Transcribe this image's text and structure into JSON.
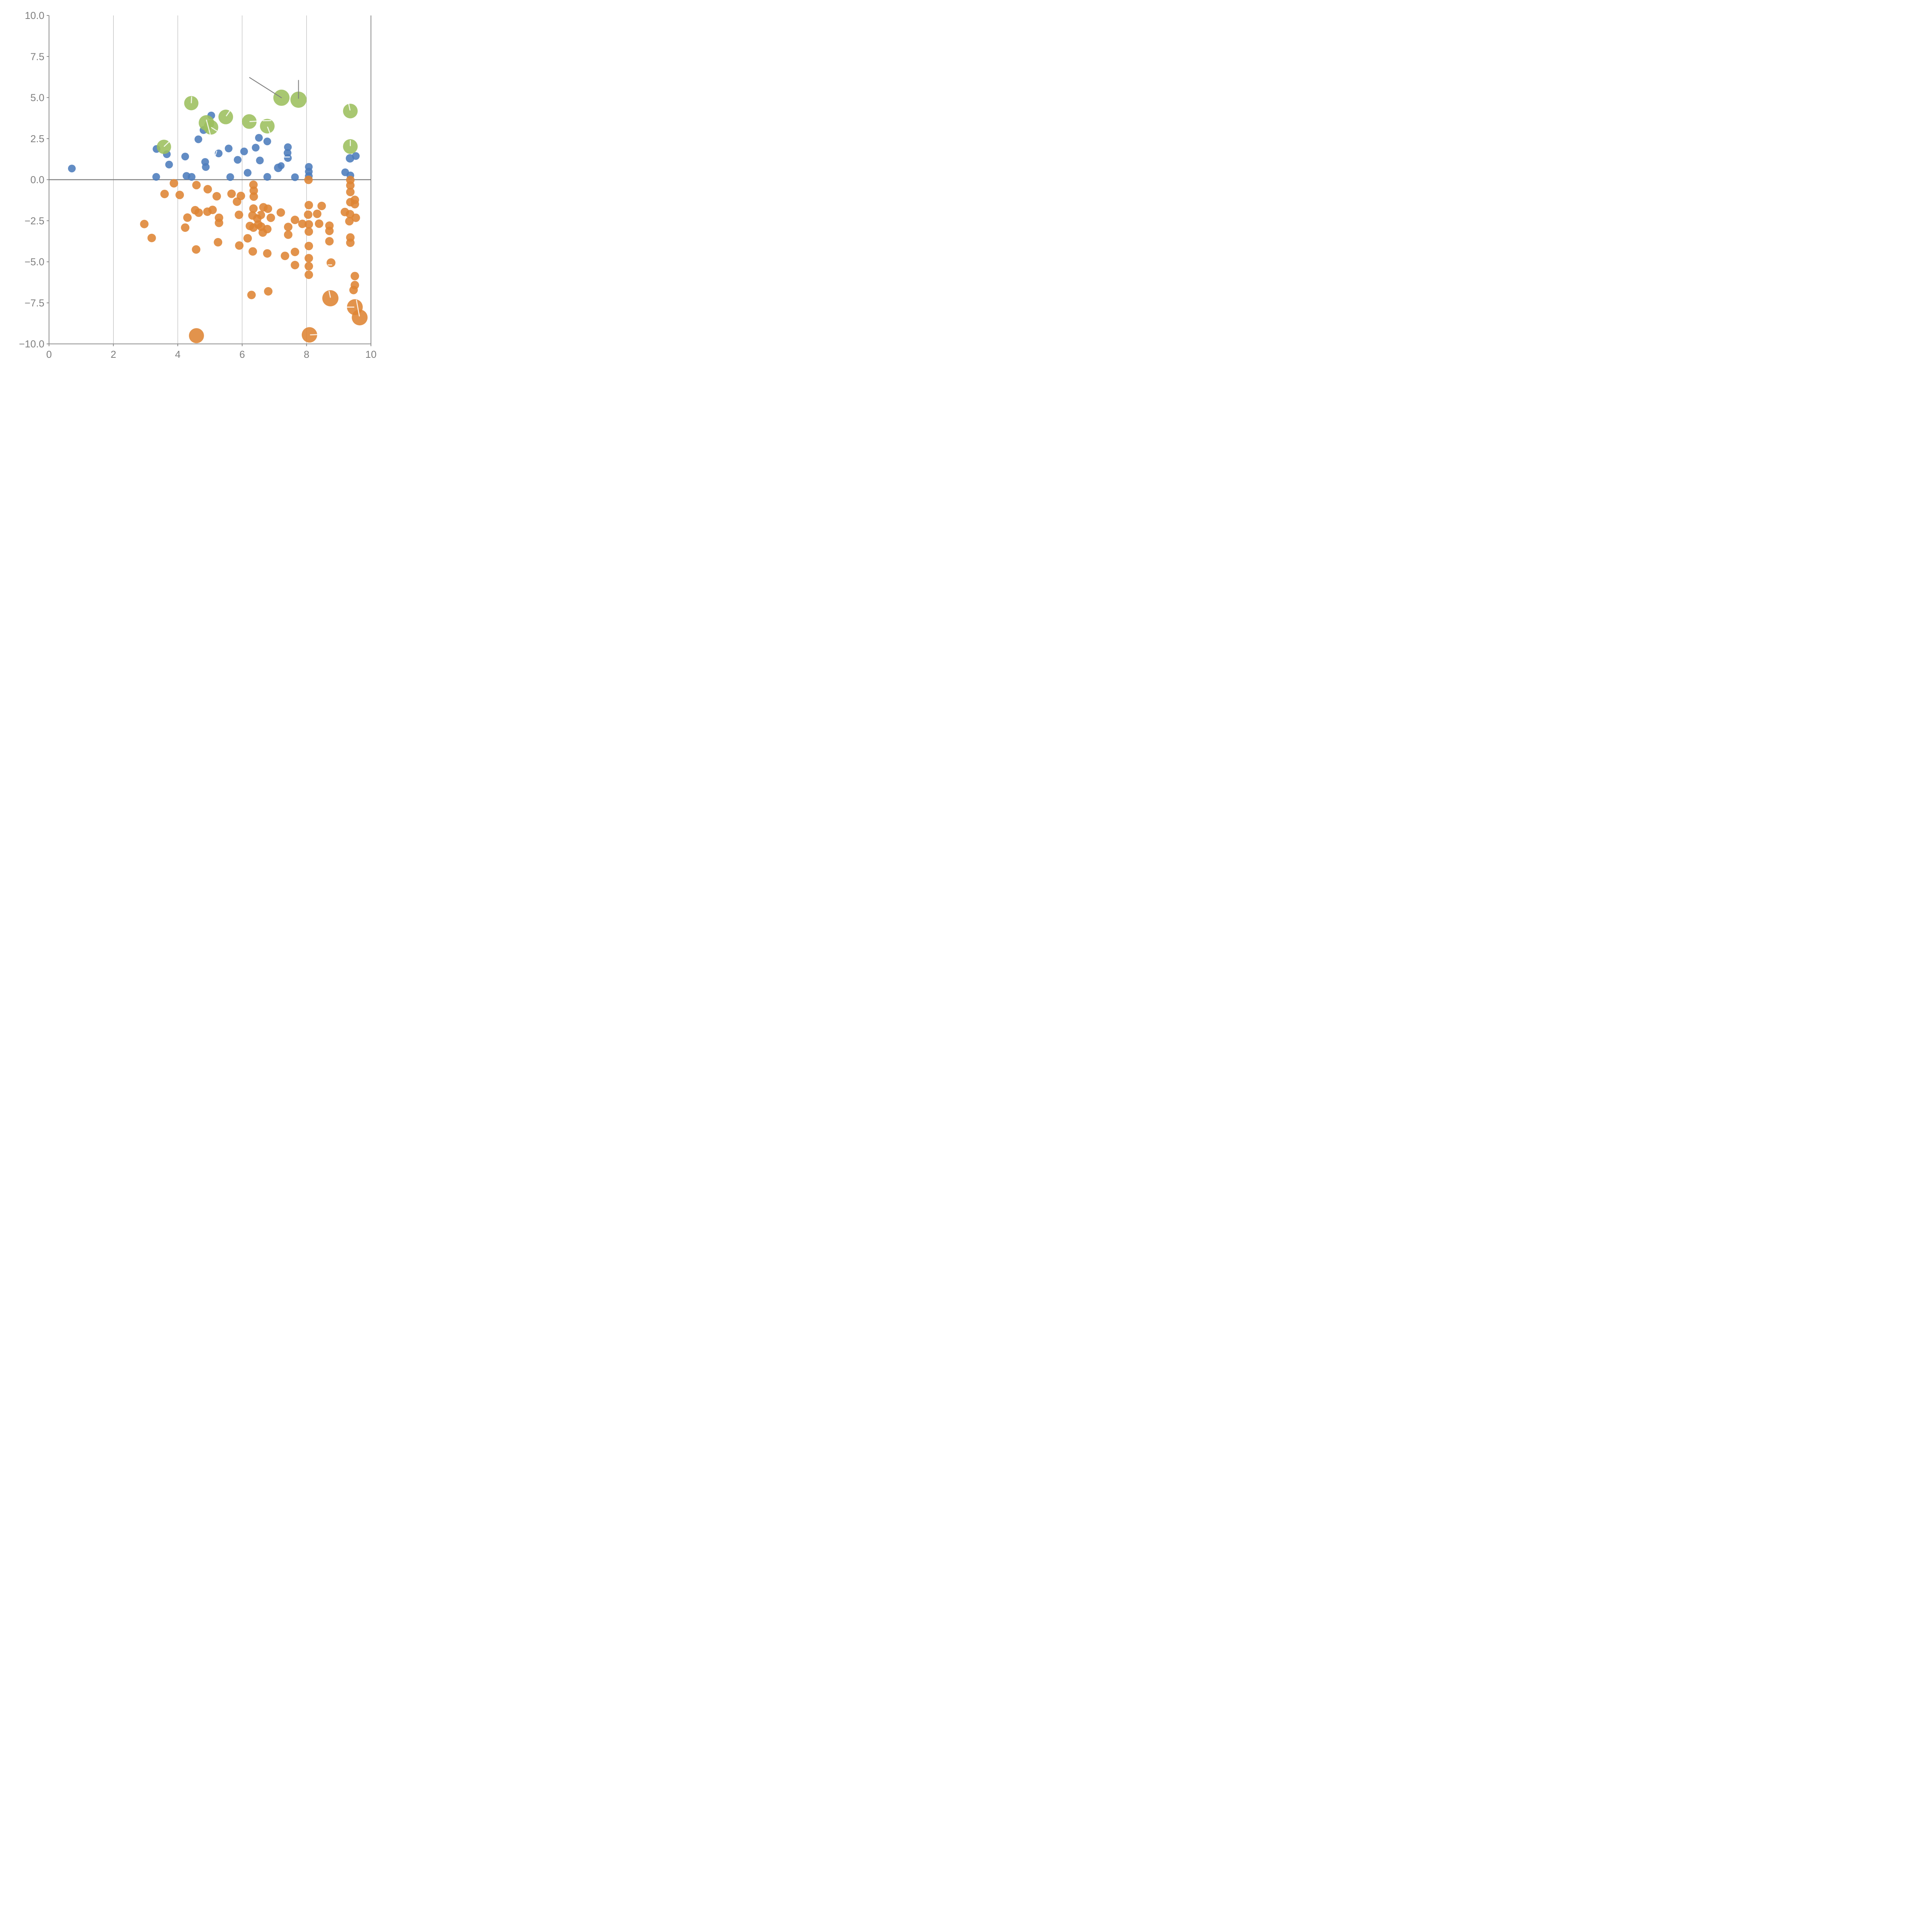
{
  "chart_data": {
    "type": "scatter",
    "title": "",
    "xlabel": "",
    "ylabel": "",
    "axes": {
      "xlim": [
        0,
        10
      ],
      "ylim": [
        -10,
        10
      ],
      "xticks": [
        0,
        2,
        4,
        6,
        8,
        10
      ],
      "xtick_labels": [
        "0",
        "2",
        "4",
        "6",
        "8",
        "10"
      ],
      "yticks": [
        10.0,
        7.5,
        5.0,
        2.5,
        0.0,
        -2.5,
        -5.0,
        -7.5,
        -10.0
      ],
      "ytick_labels": [
        "10.0",
        "7.5",
        "5.0",
        "2.5",
        "0.0",
        "−2.5",
        "−5.0",
        "−7.5",
        "−10.0"
      ],
      "vertical_gridlines": [
        2,
        4,
        6,
        8
      ],
      "horizontal_gridlines": [],
      "zero_line_y": 0,
      "grid_color": "#999999",
      "spine_color": "#808080",
      "zero_line_color": "#808080",
      "tick_label_color": "#7f7f7f",
      "legend": "none"
    },
    "series": [
      {
        "name": "blue",
        "color": "#4C7CBC",
        "marker": "circle",
        "points": [
          [
            0.71,
            0.68,
            10
          ],
          [
            3.34,
            1.87,
            10
          ],
          [
            3.66,
            1.55,
            10
          ],
          [
            3.73,
            0.92,
            10
          ],
          [
            3.33,
            0.17,
            10
          ],
          [
            4.23,
            1.41,
            10
          ],
          [
            4.8,
            3.02,
            10
          ],
          [
            4.64,
            2.46,
            10
          ],
          [
            4.85,
            1.08,
            10
          ],
          [
            4.87,
            0.77,
            10
          ],
          [
            4.27,
            0.23,
            10
          ],
          [
            4.43,
            0.17,
            10
          ],
          [
            5.04,
            3.91,
            10
          ],
          [
            5.58,
            1.9,
            10
          ],
          [
            5.27,
            1.6,
            10
          ],
          [
            5.86,
            1.21,
            10
          ],
          [
            6.06,
            1.72,
            10
          ],
          [
            6.42,
            1.95,
            10
          ],
          [
            6.52,
            2.55,
            10
          ],
          [
            6.78,
            2.33,
            10
          ],
          [
            6.55,
            1.17,
            10
          ],
          [
            6.17,
            0.42,
            10
          ],
          [
            6.78,
            0.17,
            10
          ],
          [
            5.63,
            0.16,
            10
          ],
          [
            7.42,
            1.98,
            10
          ],
          [
            7.41,
            1.63,
            10
          ],
          [
            7.42,
            1.32,
            10
          ],
          [
            7.12,
            0.72,
            11
          ],
          [
            7.21,
            0.85,
            9
          ],
          [
            7.64,
            0.15,
            10
          ],
          [
            8.07,
            0.78,
            10
          ],
          [
            8.07,
            0.49,
            10
          ],
          [
            8.07,
            0.22,
            10
          ],
          [
            9.2,
            0.45,
            10
          ],
          [
            9.36,
            0.26,
            10
          ],
          [
            9.35,
            1.3,
            11
          ],
          [
            9.53,
            1.44,
            10
          ]
        ]
      },
      {
        "name": "orange",
        "color": "#DE8433",
        "marker": "circle",
        "points": [
          [
            3.88,
            -0.22,
            11
          ],
          [
            4.58,
            -0.33,
            11
          ],
          [
            3.59,
            -0.87,
            11
          ],
          [
            4.06,
            -0.93,
            11
          ],
          [
            4.93,
            -0.58,
            11
          ],
          [
            5.21,
            -1.01,
            11
          ],
          [
            5.67,
            -0.86,
            11
          ],
          [
            5.96,
            -0.99,
            11
          ],
          [
            5.84,
            -1.34,
            11
          ],
          [
            6.35,
            -0.31,
            11
          ],
          [
            6.36,
            -0.67,
            11
          ],
          [
            6.36,
            -1.03,
            11
          ],
          [
            2.96,
            -2.7,
            11
          ],
          [
            3.19,
            -3.55,
            11
          ],
          [
            4.3,
            -2.31,
            11
          ],
          [
            4.54,
            -1.86,
            11
          ],
          [
            4.65,
            -2.01,
            11
          ],
          [
            4.23,
            -2.92,
            11
          ],
          [
            4.57,
            -4.25,
            11
          ],
          [
            4.92,
            -1.95,
            11
          ],
          [
            5.08,
            -1.84,
            11
          ],
          [
            5.28,
            -2.32,
            11
          ],
          [
            5.28,
            -2.63,
            11
          ],
          [
            5.25,
            -3.81,
            11
          ],
          [
            5.9,
            -2.14,
            11
          ],
          [
            5.91,
            -4.01,
            11
          ],
          [
            6.35,
            -1.76,
            11
          ],
          [
            6.32,
            -2.18,
            11
          ],
          [
            6.24,
            -2.82,
            11
          ],
          [
            6.35,
            -2.92,
            11
          ],
          [
            6.47,
            -2.37,
            11
          ],
          [
            6.5,
            -2.73,
            11
          ],
          [
            6.17,
            -3.57,
            11
          ],
          [
            6.33,
            -4.37,
            11
          ],
          [
            6.59,
            -2.86,
            11
          ],
          [
            6.78,
            -3.01,
            11
          ],
          [
            6.64,
            -3.22,
            11
          ],
          [
            6.66,
            -1.68,
            11
          ],
          [
            6.8,
            -1.77,
            11
          ],
          [
            6.58,
            -2.15,
            11
          ],
          [
            7.2,
            -2.0,
            11
          ],
          [
            6.89,
            -2.32,
            11
          ],
          [
            7.64,
            -2.45,
            11
          ],
          [
            7.87,
            -2.69,
            11
          ],
          [
            7.43,
            -2.88,
            11
          ],
          [
            7.43,
            -3.35,
            11
          ],
          [
            8.06,
            -0.01,
            11
          ],
          [
            8.07,
            -1.55,
            11
          ],
          [
            8.05,
            -2.13,
            11
          ],
          [
            8.07,
            -2.72,
            11
          ],
          [
            8.07,
            -3.16,
            11
          ],
          [
            8.33,
            -2.08,
            11
          ],
          [
            8.39,
            -2.68,
            11
          ],
          [
            8.47,
            -1.6,
            11
          ],
          [
            6.78,
            -4.49,
            11
          ],
          [
            7.33,
            -4.64,
            11
          ],
          [
            7.64,
            -4.4,
            11
          ],
          [
            7.64,
            -5.2,
            11
          ],
          [
            8.07,
            -4.04,
            11
          ],
          [
            8.07,
            -4.78,
            11
          ],
          [
            8.07,
            -5.27,
            11
          ],
          [
            8.07,
            -5.79,
            11
          ],
          [
            8.76,
            -5.06,
            11.5
          ],
          [
            8.71,
            -2.8,
            11
          ],
          [
            8.71,
            -3.12,
            11
          ],
          [
            8.71,
            -3.75,
            11
          ],
          [
            9.36,
            -3.52,
            11
          ],
          [
            9.36,
            -3.84,
            11
          ],
          [
            9.19,
            -1.97,
            11
          ],
          [
            9.35,
            -2.1,
            11
          ],
          [
            9.53,
            -2.32,
            11
          ],
          [
            9.33,
            -2.53,
            11
          ],
          [
            9.36,
            -0.02,
            11
          ],
          [
            9.36,
            -0.35,
            11
          ],
          [
            9.36,
            -0.75,
            11
          ],
          [
            9.5,
            -1.23,
            11
          ],
          [
            9.36,
            -1.37,
            11
          ],
          [
            9.5,
            -1.49,
            11
          ],
          [
            9.5,
            -5.87,
            11
          ],
          [
            9.5,
            -6.42,
            11
          ],
          [
            9.46,
            -6.72,
            11
          ],
          [
            6.29,
            -7.02,
            11
          ],
          [
            6.81,
            -6.8,
            11
          ],
          [
            8.74,
            -7.22,
            21
          ],
          [
            9.5,
            -7.76,
            20.5
          ],
          [
            9.65,
            -8.39,
            20.5
          ],
          [
            8.09,
            -9.45,
            20
          ],
          [
            4.58,
            -9.5,
            19.5
          ]
        ]
      },
      {
        "name": "green",
        "color": "#9CBF5D",
        "marker": "circle",
        "points": [
          [
            4.42,
            4.66,
            18.5
          ],
          [
            4.89,
            3.46,
            20
          ],
          [
            5.03,
            3.19,
            19
          ],
          [
            5.49,
            3.82,
            19
          ],
          [
            3.57,
            2.0,
            18.5
          ],
          [
            6.22,
            3.54,
            19
          ],
          [
            6.78,
            3.26,
            19
          ],
          [
            7.22,
            4.99,
            21
          ],
          [
            7.75,
            4.87,
            21
          ],
          [
            9.36,
            4.18,
            19
          ],
          [
            9.36,
            2.02,
            19
          ]
        ]
      }
    ],
    "gray_segments": [
      [
        6.23,
        6.22,
        7.22,
        4.99
      ],
      [
        7.75,
        6.05,
        7.75,
        4.95
      ]
    ],
    "white_marks": [
      [
        4.42,
        4.68,
        4.43,
        5.04
      ],
      [
        4.89,
        3.63,
        5.01,
        2.75
      ],
      [
        5.05,
        3.17,
        5.21,
        2.97
      ],
      [
        5.51,
        3.89,
        5.62,
        4.2
      ],
      [
        3.58,
        2.03,
        3.73,
        2.31
      ],
      [
        6.24,
        3.54,
        6.44,
        3.56
      ],
      [
        6.65,
        3.59,
        6.89,
        3.6
      ],
      [
        6.79,
        3.2,
        6.86,
        2.84
      ],
      [
        9.35,
        4.24,
        9.31,
        4.61
      ],
      [
        9.36,
        2.07,
        9.36,
        2.38
      ],
      [
        8.7,
        -6.79,
        8.74,
        -7.16
      ],
      [
        9.26,
        -7.76,
        9.47,
        -7.76
      ],
      [
        9.55,
        -7.34,
        9.64,
        -8.3
      ],
      [
        8.12,
        -9.45,
        8.34,
        -9.43
      ],
      [
        6.43,
        -2.01,
        6.49,
        -2.09
      ],
      [
        8.67,
        -5.19,
        8.78,
        -5.19
      ],
      [
        5.17,
        1.5,
        5.21,
        1.74
      ],
      [
        7.3,
        1.38,
        7.47,
        1.38
      ]
    ],
    "style": {
      "dot_opacity": 0.88,
      "gray_segment_color": "#808080",
      "white_mark_color": "#ffffff",
      "background": "#ffffff"
    }
  }
}
